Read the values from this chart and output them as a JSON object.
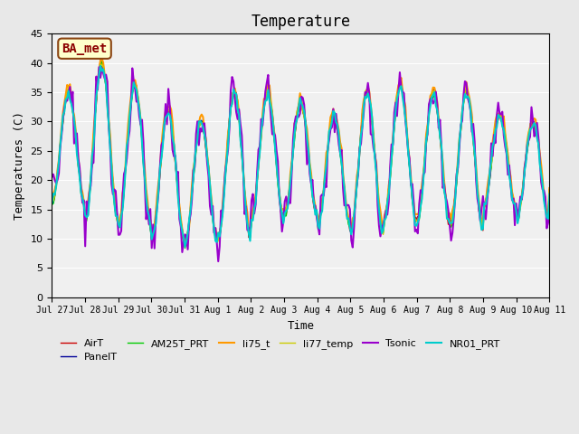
{
  "title": "Temperature",
  "xlabel": "Time",
  "ylabel": "Temperatures (C)",
  "annotation": "BA_met",
  "ylim": [
    0,
    45
  ],
  "yticks": [
    0,
    5,
    10,
    15,
    20,
    25,
    30,
    35,
    40,
    45
  ],
  "x_tick_labels": [
    "Jul 27",
    "Jul 28",
    "Jul 29",
    "Jul 30",
    "Jul 31",
    "Aug 1",
    "Aug 2",
    "Aug 3",
    "Aug 4",
    "Aug 5",
    "Aug 6",
    "Aug 7",
    "Aug 8",
    "Aug 9",
    "Aug 10",
    "Aug 11"
  ],
  "series_names": [
    "AirT",
    "PanelT",
    "AM25T_PRT",
    "li75_t",
    "li77_temp",
    "Tsonic",
    "NR01_PRT"
  ],
  "series_colors": [
    "#cc0000",
    "#000099",
    "#00cc00",
    "#ff9900",
    "#cccc00",
    "#9900cc",
    "#00cccc"
  ],
  "series_widths": [
    1.0,
    1.0,
    1.0,
    1.5,
    1.0,
    1.5,
    1.5
  ],
  "bg_color": "#e8e8e8",
  "plot_bg": "#f0f0f0",
  "n_points": 360,
  "base_period": 24,
  "peaks": [
    35,
    40,
    36,
    32,
    30,
    35,
    35,
    33,
    31,
    35,
    36,
    35,
    35,
    31,
    30,
    30
  ],
  "troughs": [
    16,
    13,
    12,
    10,
    9,
    10,
    13,
    14,
    12,
    11,
    13,
    13,
    12,
    15,
    13,
    18
  ]
}
